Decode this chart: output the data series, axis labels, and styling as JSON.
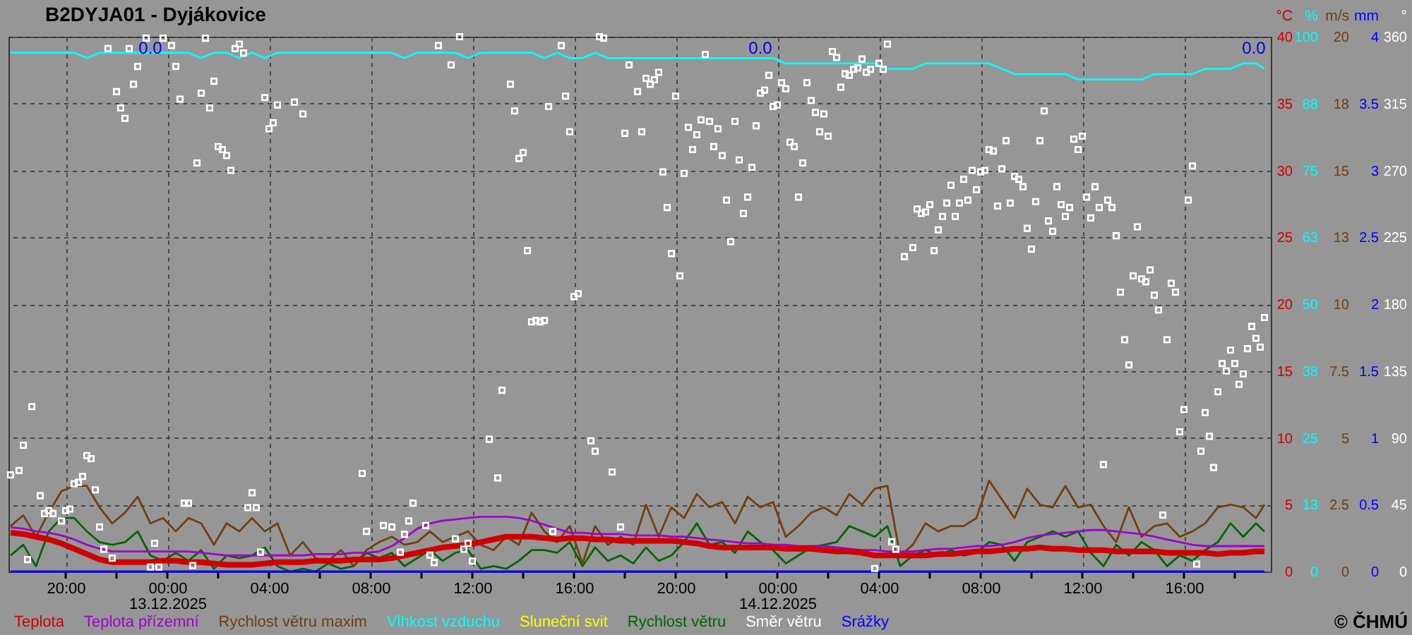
{
  "chart_data": [
    {
      "type": "line",
      "title": "B2DYJA01 - Dyjákovice",
      "x": [
        "2025-12-12T17:50",
        "2025-12-12T18:20",
        "2025-12-12T18:50",
        "2025-12-12T19:20",
        "2025-12-12T19:50",
        "2025-12-12T20:20",
        "2025-12-12T20:50",
        "2025-12-12T21:20",
        "2025-12-12T21:50",
        "2025-12-12T22:20",
        "2025-12-12T22:50",
        "2025-12-12T23:20",
        "2025-12-12T23:50",
        "2025-12-13T00:20",
        "2025-12-13T00:50",
        "2025-12-13T01:20",
        "2025-12-13T01:50",
        "2025-12-13T02:20",
        "2025-12-13T02:50",
        "2025-12-13T03:20",
        "2025-12-13T03:50",
        "2025-12-13T04:20",
        "2025-12-13T04:50",
        "2025-12-13T05:20",
        "2025-12-13T05:50",
        "2025-12-13T06:20",
        "2025-12-13T06:50",
        "2025-12-13T07:20",
        "2025-12-13T07:50",
        "2025-12-13T08:20",
        "2025-12-13T08:50",
        "2025-12-13T09:20",
        "2025-12-13T09:50",
        "2025-12-13T10:20",
        "2025-12-13T10:50",
        "2025-12-13T11:20",
        "2025-12-13T11:50",
        "2025-12-13T12:20",
        "2025-12-13T12:50",
        "2025-12-13T13:20",
        "2025-12-13T13:50",
        "2025-12-13T14:20",
        "2025-12-13T14:50",
        "2025-12-13T15:20",
        "2025-12-13T15:50",
        "2025-12-13T16:20",
        "2025-12-13T16:50",
        "2025-12-13T17:20",
        "2025-12-13T17:50",
        "2025-12-13T18:20",
        "2025-12-13T18:50",
        "2025-12-13T19:20",
        "2025-12-13T19:50",
        "2025-12-13T20:20",
        "2025-12-13T20:50",
        "2025-12-13T21:20",
        "2025-12-13T21:50",
        "2025-12-13T22:20",
        "2025-12-13T22:50",
        "2025-12-13T23:20",
        "2025-12-13T23:50",
        "2025-12-14T00:20",
        "2025-12-14T00:50",
        "2025-12-14T01:20",
        "2025-12-14T01:50",
        "2025-12-14T02:20",
        "2025-12-14T02:50",
        "2025-12-14T03:20",
        "2025-12-14T03:50",
        "2025-12-14T04:20",
        "2025-12-14T04:50",
        "2025-12-14T05:20",
        "2025-12-14T05:50",
        "2025-12-14T06:20",
        "2025-12-14T06:50",
        "2025-12-14T07:20",
        "2025-12-14T07:50",
        "2025-12-14T08:20",
        "2025-12-14T08:50",
        "2025-12-14T09:20",
        "2025-12-14T09:50",
        "2025-12-14T10:20",
        "2025-12-14T10:50",
        "2025-12-14T11:20",
        "2025-12-14T11:50",
        "2025-12-14T12:20",
        "2025-12-14T12:50",
        "2025-12-14T13:20",
        "2025-12-14T13:50",
        "2025-12-14T14:20",
        "2025-12-14T14:50",
        "2025-12-14T15:20",
        "2025-12-14T15:50",
        "2025-12-14T16:20",
        "2025-12-14T16:50",
        "2025-12-14T17:20",
        "2025-12-14T17:50",
        "2025-12-14T18:20",
        "2025-12-14T18:50",
        "2025-12-14T19:10"
      ],
      "series": [
        {
          "name": "Teplota",
          "color": "#d00000",
          "values": [
            2.9,
            2.8,
            2.6,
            2.4,
            2.1,
            1.7,
            1.3,
            0.9,
            0.7,
            0.7,
            0.7,
            0.7,
            0.8,
            0.8,
            0.7,
            0.7,
            0.6,
            0.5,
            0.5,
            0.5,
            0.6,
            0.7,
            0.7,
            0.7,
            0.8,
            0.8,
            0.8,
            0.9,
            0.9,
            0.9,
            1.0,
            1.2,
            1.4,
            1.6,
            1.8,
            1.9,
            2.0,
            2.2,
            2.4,
            2.6,
            2.6,
            2.6,
            2.5,
            2.4,
            2.5,
            2.5,
            2.4,
            2.4,
            2.3,
            2.3,
            2.3,
            2.3,
            2.3,
            2.2,
            2.1,
            1.9,
            1.8,
            1.8,
            1.8,
            1.8,
            1.8,
            1.7,
            1.7,
            1.7,
            1.6,
            1.5,
            1.5,
            1.4,
            1.2,
            1.2,
            1.2,
            1.2,
            1.2,
            1.3,
            1.3,
            1.4,
            1.5,
            1.5,
            1.6,
            1.7,
            1.7,
            1.8,
            1.7,
            1.7,
            1.6,
            1.6,
            1.6,
            1.5,
            1.5,
            1.5,
            1.5,
            1.4,
            1.4,
            1.4,
            1.4,
            1.3,
            1.4,
            1.4,
            1.5,
            1.5
          ]
        },
        {
          "name": "Teplota přízemní",
          "color": "#a000d0",
          "values": [
            3.3,
            3.2,
            3.0,
            2.9,
            2.7,
            2.4,
            2.0,
            1.7,
            1.5,
            1.5,
            1.5,
            1.5,
            1.5,
            1.5,
            1.5,
            1.4,
            1.3,
            1.2,
            1.2,
            1.2,
            1.2,
            1.2,
            1.2,
            1.2,
            1.3,
            1.3,
            1.3,
            1.4,
            1.4,
            1.5,
            1.9,
            2.5,
            3.2,
            3.6,
            3.8,
            3.9,
            4.0,
            4.1,
            4.1,
            4.1,
            4.0,
            3.8,
            3.5,
            3.2,
            2.9,
            2.9,
            2.8,
            2.8,
            2.8,
            2.7,
            2.7,
            2.7,
            2.6,
            2.6,
            2.5,
            2.4,
            2.3,
            2.2,
            2.1,
            2.1,
            2.0,
            2.0,
            1.9,
            1.9,
            1.9,
            1.8,
            1.7,
            1.6,
            1.6,
            1.5,
            1.5,
            1.5,
            1.6,
            1.7,
            1.7,
            1.8,
            1.9,
            1.9,
            2.0,
            2.2,
            2.5,
            2.7,
            2.8,
            2.9,
            3.0,
            3.1,
            3.1,
            3.0,
            2.9,
            2.8,
            2.6,
            2.4,
            2.2,
            2.0,
            1.9,
            1.9,
            1.9,
            1.9,
            1.9,
            1.9
          ]
        },
        {
          "name": "Rychlost větru maxim",
          "color": "#704010",
          "axis": "y3",
          "values": [
            1.7,
            2.1,
            1.3,
            2.2,
            3.0,
            3.2,
            3.2,
            2.4,
            1.8,
            2.2,
            2.8,
            1.8,
            2.0,
            1.5,
            2.0,
            1.8,
            1.0,
            1.8,
            1.5,
            2.0,
            1.5,
            1.8,
            0.6,
            1.1,
            0.5,
            0.4,
            0.8,
            0.2,
            0.8,
            1.1,
            1.3,
            1.0,
            1.1,
            1.5,
            1.1,
            1.3,
            1.5,
            1.0,
            0.8,
            1.3,
            1.0,
            2.2,
            1.5,
            1.1,
            1.7,
            0.3,
            1.7,
            1.0,
            1.3,
            1.0,
            2.5,
            1.3,
            2.4,
            2.0,
            2.9,
            2.4,
            2.6,
            1.8,
            2.8,
            2.4,
            2.6,
            1.3,
            1.7,
            2.2,
            2.4,
            2.1,
            2.9,
            2.5,
            3.1,
            3.2,
            0.6,
            1.0,
            1.8,
            1.5,
            1.7,
            1.7,
            2.0,
            3.4,
            2.7,
            2.0,
            3.1,
            2.5,
            2.4,
            3.2,
            2.4,
            2.5,
            1.7,
            1.1,
            2.4,
            1.3,
            1.7,
            1.8,
            1.3,
            1.5,
            1.8,
            2.4,
            2.5,
            2.4,
            2.0,
            2.5
          ]
        },
        {
          "name": "Vlhkost vzduchu",
          "color": "#00ffff",
          "axis": "y2",
          "values": [
            97,
            97,
            97,
            97,
            97,
            97,
            96,
            97,
            97,
            97,
            97,
            97,
            97,
            97,
            97,
            96,
            97,
            97,
            96,
            97,
            96,
            97,
            97,
            97,
            97,
            97,
            97,
            97,
            97,
            97,
            97,
            96,
            97,
            97,
            97,
            97,
            96,
            97,
            97,
            97,
            97,
            97,
            96,
            97,
            96,
            96,
            97,
            96,
            96,
            96,
            96,
            96,
            96,
            96,
            96,
            96,
            96,
            96,
            96,
            96,
            96,
            95,
            95,
            95,
            95,
            95,
            95,
            95,
            95,
            94,
            94,
            94,
            95,
            95,
            95,
            95,
            95,
            95,
            94,
            93,
            93,
            93,
            93,
            93,
            92,
            92,
            92,
            92,
            92,
            92,
            93,
            93,
            93,
            93,
            94,
            94,
            94,
            95,
            95,
            94
          ]
        },
        {
          "name": "Sluneční svit",
          "color": "#ffff00",
          "values": [
            null,
            null,
            null,
            null,
            null,
            null,
            null,
            null,
            null,
            null,
            null,
            null,
            null,
            null,
            null,
            null,
            null,
            null,
            null,
            null,
            null,
            null,
            null,
            null,
            null,
            null,
            null,
            null,
            null,
            null,
            null,
            null,
            null,
            null,
            null,
            null,
            null,
            null,
            null,
            null,
            null,
            null,
            null,
            null,
            null,
            null,
            null,
            null,
            null,
            null,
            null,
            null,
            null,
            null,
            null,
            null,
            null,
            null,
            null,
            null,
            null,
            null,
            null,
            null,
            null,
            null,
            null,
            null,
            null,
            null,
            null,
            null,
            null,
            null,
            null,
            null,
            null,
            null,
            null,
            null,
            null,
            null,
            null,
            null,
            null,
            null,
            null,
            null,
            null,
            null,
            null,
            null,
            null,
            null,
            null,
            null,
            null,
            null,
            null,
            null
          ]
        },
        {
          "name": "Rychlost větru",
          "color": "#006600",
          "axis": "y3",
          "values": [
            0.6,
            1.0,
            0.2,
            1.5,
            2.0,
            2.0,
            1.5,
            1.1,
            1.0,
            1.1,
            1.5,
            0.6,
            0.4,
            0.7,
            0.4,
            0.8,
            0.1,
            0.6,
            0.5,
            0.6,
            0.9,
            0.2,
            0.0,
            0.1,
            0.0,
            0.3,
            0.1,
            0.2,
            0.7,
            0.5,
            0.7,
            0.2,
            0.5,
            0.8,
            0.4,
            0.7,
            0.8,
            0.1,
            0.2,
            0.1,
            0.4,
            0.8,
            0.8,
            0.7,
            1.1,
            0.2,
            0.9,
            0.4,
            0.6,
            0.3,
            0.9,
            0.4,
            0.6,
            1.1,
            1.8,
            1.0,
            1.1,
            0.7,
            1.5,
            1.1,
            0.8,
            0.3,
            0.6,
            0.9,
            1.0,
            1.1,
            1.7,
            1.5,
            1.3,
            1.7,
            0.2,
            0.6,
            0.8,
            0.6,
            0.8,
            0.6,
            0.7,
            1.1,
            1.0,
            0.4,
            1.1,
            1.3,
            1.5,
            1.3,
            1.5,
            0.7,
            0.2,
            1.0,
            0.6,
            1.1,
            0.8,
            0.2,
            0.6,
            0.4,
            0.8,
            1.1,
            1.8,
            1.3,
            1.8,
            1.5
          ]
        }
      ],
      "xlim": [
        "2025-12-12T17:45",
        "2025-12-14T19:25"
      ],
      "xticks": [
        {
          "value": "2025-12-12T20:00",
          "label": "20:00"
        },
        {
          "value": "2025-12-12T22:00",
          "label": null
        },
        {
          "value": "2025-12-13T00:00",
          "label": "00:00\n13.12.2025"
        },
        {
          "value": "2025-12-13T02:00",
          "label": null
        },
        {
          "value": "2025-12-13T04:00",
          "label": "04:00"
        },
        {
          "value": "2025-12-13T06:00",
          "label": null
        },
        {
          "value": "2025-12-13T08:00",
          "label": "08:00"
        },
        {
          "value": "2025-12-13T10:00",
          "label": null
        },
        {
          "value": "2025-12-13T12:00",
          "label": "12:00"
        },
        {
          "value": "2025-12-13T14:00",
          "label": null
        },
        {
          "value": "2025-12-13T16:00",
          "label": "16:00"
        },
        {
          "value": "2025-12-13T18:00",
          "label": null
        },
        {
          "value": "2025-12-13T20:00",
          "label": "20:00"
        },
        {
          "value": "2025-12-13T22:00",
          "label": null
        },
        {
          "value": "2025-12-14T00:00",
          "label": "00:00\n14.12.2025"
        },
        {
          "value": "2025-12-14T02:00",
          "label": null
        },
        {
          "value": "2025-12-14T04:00",
          "label": "04:00"
        },
        {
          "value": "2025-12-14T06:00",
          "label": null
        },
        {
          "value": "2025-12-14T08:00",
          "label": "08:00"
        },
        {
          "value": "2025-12-14T10:00",
          "label": null
        },
        {
          "value": "2025-12-14T12:00",
          "label": "12:00"
        },
        {
          "value": "2025-12-14T14:00",
          "label": null
        },
        {
          "value": "2025-12-14T16:00",
          "label": "16:00"
        },
        {
          "value": "2025-12-14T18:00",
          "label": null
        }
      ],
      "ylabel": "°C",
      "ylim": [
        0,
        40
      ],
      "yticks": [
        0,
        5,
        10,
        15,
        20,
        25,
        30,
        35,
        40
      ],
      "y2label": "%",
      "y2lim": [
        0,
        100
      ],
      "y2ticks": [
        0,
        {
          "value": 12.5,
          "label": "13"
        },
        25,
        {
          "value": 37.5,
          "label": "38"
        },
        50,
        {
          "value": 62.5,
          "label": "63"
        },
        75,
        {
          "value": 87.5,
          "label": "88"
        },
        100
      ],
      "y3label": "m/s",
      "y3lim": [
        0,
        20
      ],
      "y3ticks": [
        0,
        2.5,
        5,
        7.5,
        10,
        {
          "value": 12.5,
          "label": "13"
        },
        15,
        {
          "value": 17.5,
          "label": "18"
        },
        20
      ],
      "annotations": [
        "© ČHMÚ"
      ],
      "grid": true,
      "legend": "bottom"
    },
    {
      "type": "scatter",
      "tick_labels": "y",
      "x": [
        "2025-12-12T17:50",
        "2025-12-12T18:20",
        "2025-12-12T18:50",
        "2025-12-12T19:20",
        "2025-12-12T19:50",
        "2025-12-12T20:20",
        "2025-12-12T20:50",
        "2025-12-12T21:20",
        "2025-12-12T21:50",
        "2025-12-12T22:20",
        "2025-12-12T22:50",
        "2025-12-12T23:20",
        "2025-12-12T23:50",
        "2025-12-13T00:20",
        "2025-12-13T00:50",
        "2025-12-13T01:20",
        "2025-12-13T01:50",
        "2025-12-13T02:20",
        "2025-12-13T02:50",
        "2025-12-13T03:20",
        "2025-12-13T03:50",
        "2025-12-13T04:20",
        "2025-12-13T04:50",
        "2025-12-13T05:20",
        "2025-12-13T05:50",
        "2025-12-13T06:20",
        "2025-12-13T06:50",
        "2025-12-13T07:20",
        "2025-12-13T07:50",
        "2025-12-13T08:20",
        "2025-12-13T08:50",
        "2025-12-13T09:20",
        "2025-12-13T09:50",
        "2025-12-13T10:20",
        "2025-12-13T10:50",
        "2025-12-13T11:20",
        "2025-12-13T11:50",
        "2025-12-13T12:20",
        "2025-12-13T12:50",
        "2025-12-13T13:20",
        "2025-12-13T13:50",
        "2025-12-13T14:20",
        "2025-12-13T14:50",
        "2025-12-13T15:20",
        "2025-12-13T15:50",
        "2025-12-13T16:20",
        "2025-12-13T16:50",
        "2025-12-13T17:20",
        "2025-12-13T17:50",
        "2025-12-13T18:20",
        "2025-12-13T18:50",
        "2025-12-13T19:20",
        "2025-12-13T19:50",
        "2025-12-13T20:20",
        "2025-12-13T20:50",
        "2025-12-13T21:20",
        "2025-12-13T21:50",
        "2025-12-13T22:20",
        "2025-12-13T22:50",
        "2025-12-13T23:20",
        "2025-12-13T23:50",
        "2025-12-14T00:20",
        "2025-12-14T00:50",
        "2025-12-14T01:20",
        "2025-12-14T01:50",
        "2025-12-14T02:20",
        "2025-12-14T02:50",
        "2025-12-14T03:20",
        "2025-12-14T03:50",
        "2025-12-14T04:20",
        "2025-12-14T04:50",
        "2025-12-14T05:20",
        "2025-12-14T05:50",
        "2025-12-14T06:20",
        "2025-12-14T06:50",
        "2025-12-14T07:20",
        "2025-12-14T07:50",
        "2025-12-14T08:20",
        "2025-12-14T08:50",
        "2025-12-14T09:20",
        "2025-12-14T09:50",
        "2025-12-14T10:20",
        "2025-12-14T10:50",
        "2025-12-14T11:20",
        "2025-12-14T11:50",
        "2025-12-14T12:20",
        "2025-12-14T12:50",
        "2025-12-14T13:20",
        "2025-12-14T13:50",
        "2025-12-14T14:20",
        "2025-12-14T14:50",
        "2025-12-14T15:20",
        "2025-12-14T15:50",
        "2025-12-14T16:20",
        "2025-12-14T16:50",
        "2025-12-14T17:20",
        "2025-12-14T17:50",
        "2025-12-14T18:20",
        "2025-12-14T18:50",
        "2025-12-14T19:10"
      ],
      "series": [
        {
          "name": "Směr větru",
          "color": "#ffffff",
          "marker": "square",
          "x": [
            "2025-12-12T17:50",
            "2025-12-12T18:10",
            "2025-12-12T18:20",
            "2025-12-12T18:30",
            "2025-12-12T18:40",
            "2025-12-12T19:00",
            "2025-12-12T19:10",
            "2025-12-12T19:20",
            "2025-12-12T19:30",
            "2025-12-12T19:50",
            "2025-12-12T20:00",
            "2025-12-12T20:10",
            "2025-12-12T20:20",
            "2025-12-12T20:30",
            "2025-12-12T20:40",
            "2025-12-12T20:50",
            "2025-12-12T21:00",
            "2025-12-12T21:10",
            "2025-12-12T21:20",
            "2025-12-12T21:30",
            "2025-12-12T21:40",
            "2025-12-12T21:50",
            "2025-12-12T22:00",
            "2025-12-12T22:10",
            "2025-12-12T22:20",
            "2025-12-12T22:30",
            "2025-12-12T22:40",
            "2025-12-12T22:50",
            "2025-12-12T23:10",
            "2025-12-12T23:20",
            "2025-12-12T23:30",
            "2025-12-12T23:40",
            "2025-12-12T23:50",
            "2025-12-13T00:10",
            "2025-12-13T00:20",
            "2025-12-13T00:30",
            "2025-12-13T00:40",
            "2025-12-13T00:50",
            "2025-12-13T01:00",
            "2025-12-13T01:10",
            "2025-12-13T01:20",
            "2025-12-13T01:30",
            "2025-12-13T01:40",
            "2025-12-13T01:50",
            "2025-12-13T02:00",
            "2025-12-13T02:10",
            "2025-12-13T02:20",
            "2025-12-13T02:30",
            "2025-12-13T02:40",
            "2025-12-13T02:50",
            "2025-12-13T03:00",
            "2025-12-13T03:10",
            "2025-12-13T03:20",
            "2025-12-13T03:30",
            "2025-12-13T03:40",
            "2025-12-13T03:50",
            "2025-12-13T04:00",
            "2025-12-13T04:10",
            "2025-12-13T04:20",
            "2025-12-13T05:00",
            "2025-12-13T05:20",
            "2025-12-13T07:40",
            "2025-12-13T07:50",
            "2025-12-13T08:30",
            "2025-12-13T08:50",
            "2025-12-13T09:10",
            "2025-12-13T09:20",
            "2025-12-13T09:30",
            "2025-12-13T09:40",
            "2025-12-13T10:10",
            "2025-12-13T10:20",
            "2025-12-13T10:30",
            "2025-12-13T10:40",
            "2025-12-13T11:10",
            "2025-12-13T11:20",
            "2025-12-13T11:30",
            "2025-12-13T11:40",
            "2025-12-13T11:50",
            "2025-12-13T12:00",
            "2025-12-13T12:40",
            "2025-12-13T13:00",
            "2025-12-13T13:10",
            "2025-12-13T13:30",
            "2025-12-13T13:40",
            "2025-12-13T13:50",
            "2025-12-13T14:00",
            "2025-12-13T14:10",
            "2025-12-13T14:20",
            "2025-12-13T14:30",
            "2025-12-13T14:40",
            "2025-12-13T14:50",
            "2025-12-13T15:00",
            "2025-12-13T15:10",
            "2025-12-13T15:30",
            "2025-12-13T15:40",
            "2025-12-13T15:50",
            "2025-12-13T16:00",
            "2025-12-13T16:10",
            "2025-12-13T16:40",
            "2025-12-13T16:50",
            "2025-12-13T17:00",
            "2025-12-13T17:10",
            "2025-12-13T17:30",
            "2025-12-13T17:50",
            "2025-12-13T18:00",
            "2025-12-13T18:10",
            "2025-12-13T18:30",
            "2025-12-13T18:40",
            "2025-12-13T18:50",
            "2025-12-13T19:00",
            "2025-12-13T19:10",
            "2025-12-13T19:20",
            "2025-12-13T19:30",
            "2025-12-13T19:40",
            "2025-12-13T19:50",
            "2025-12-13T20:00",
            "2025-12-13T20:10",
            "2025-12-13T20:20",
            "2025-12-13T20:30",
            "2025-12-13T20:40",
            "2025-12-13T20:50",
            "2025-12-13T21:00",
            "2025-12-13T21:10",
            "2025-12-13T21:20",
            "2025-12-13T21:30",
            "2025-12-13T21:40",
            "2025-12-13T21:50",
            "2025-12-13T22:00",
            "2025-12-13T22:10",
            "2025-12-13T22:20",
            "2025-12-13T22:30",
            "2025-12-13T22:40",
            "2025-12-13T22:50",
            "2025-12-13T23:00",
            "2025-12-13T23:10",
            "2025-12-13T23:20",
            "2025-12-13T23:30",
            "2025-12-13T23:40",
            "2025-12-13T23:50",
            "2025-12-14T00:00",
            "2025-12-14T00:10",
            "2025-12-14T00:20",
            "2025-12-14T00:30",
            "2025-12-14T00:40",
            "2025-12-14T00:50",
            "2025-12-14T01:00",
            "2025-12-14T01:10",
            "2025-12-14T01:20",
            "2025-12-14T01:30",
            "2025-12-14T01:40",
            "2025-12-14T01:50",
            "2025-12-14T02:00",
            "2025-12-14T02:10",
            "2025-12-14T02:20",
            "2025-12-14T02:30",
            "2025-12-14T02:40",
            "2025-12-14T02:50",
            "2025-12-14T03:00",
            "2025-12-14T03:10",
            "2025-12-14T03:20",
            "2025-12-14T03:30",
            "2025-12-14T03:40",
            "2025-12-14T03:50",
            "2025-12-14T04:00",
            "2025-12-14T04:10",
            "2025-12-14T04:20",
            "2025-12-14T04:30",
            "2025-12-14T04:40",
            "2025-12-14T05:00",
            "2025-12-14T05:20",
            "2025-12-14T05:30",
            "2025-12-14T05:40",
            "2025-12-14T05:50",
            "2025-12-14T06:00",
            "2025-12-14T06:10",
            "2025-12-14T06:20",
            "2025-12-14T06:30",
            "2025-12-14T06:40",
            "2025-12-14T06:50",
            "2025-12-14T07:00",
            "2025-12-14T07:10",
            "2025-12-14T07:20",
            "2025-12-14T07:30",
            "2025-12-14T07:40",
            "2025-12-14T07:50",
            "2025-12-14T08:00",
            "2025-12-14T08:10",
            "2025-12-14T08:20",
            "2025-12-14T08:30",
            "2025-12-14T08:40",
            "2025-12-14T08:50",
            "2025-12-14T09:00",
            "2025-12-14T09:10",
            "2025-12-14T09:20",
            "2025-12-14T09:30",
            "2025-12-14T09:40",
            "2025-12-14T09:50",
            "2025-12-14T10:00",
            "2025-12-14T10:10",
            "2025-12-14T10:20",
            "2025-12-14T10:30",
            "2025-12-14T10:40",
            "2025-12-14T10:50",
            "2025-12-14T11:00",
            "2025-12-14T11:10",
            "2025-12-14T11:20",
            "2025-12-14T11:30",
            "2025-12-14T11:40",
            "2025-12-14T11:50",
            "2025-12-14T12:00",
            "2025-12-14T12:10",
            "2025-12-14T12:20",
            "2025-12-14T12:30",
            "2025-12-14T12:40",
            "2025-12-14T12:50",
            "2025-12-14T13:00",
            "2025-12-14T13:10",
            "2025-12-14T13:20",
            "2025-12-14T13:30",
            "2025-12-14T13:40",
            "2025-12-14T13:50",
            "2025-12-14T14:00",
            "2025-12-14T14:10",
            "2025-12-14T14:20",
            "2025-12-14T14:30",
            "2025-12-14T14:40",
            "2025-12-14T14:50",
            "2025-12-14T15:00",
            "2025-12-14T15:10",
            "2025-12-14T15:20",
            "2025-12-14T15:30",
            "2025-12-14T15:40",
            "2025-12-14T15:50",
            "2025-12-14T16:00",
            "2025-12-14T16:10",
            "2025-12-14T16:20",
            "2025-12-14T16:30",
            "2025-12-14T16:40",
            "2025-12-14T16:50",
            "2025-12-14T17:00",
            "2025-12-14T17:10",
            "2025-12-14T17:20",
            "2025-12-14T17:30",
            "2025-12-14T17:40",
            "2025-12-14T17:50",
            "2025-12-14T18:00",
            "2025-12-14T18:10",
            "2025-12-14T18:20",
            "2025-12-14T18:30",
            "2025-12-14T18:40",
            "2025-12-14T18:50",
            "2025-12-14T19:00",
            "2025-12-14T19:10"
          ],
          "values": [
            65,
            68,
            85,
            8,
            111,
            51,
            39,
            41,
            39,
            34,
            41,
            42,
            59,
            60,
            64,
            78,
            76,
            55,
            30,
            15,
            352,
            9,
            323,
            312,
            305,
            352,
            328,
            340,
            359,
            3,
            19,
            3,
            359,
            354,
            340,
            318,
            46,
            46,
            4,
            275,
            322,
            359,
            312,
            330,
            286,
            284,
            280,
            270,
            352,
            355,
            349,
            43,
            53,
            43,
            13,
            319,
            298,
            302,
            314,
            316,
            308,
            66,
            27,
            31,
            30,
            13,
            25,
            34,
            46,
            31,
            11,
            6,
            354,
            341,
            22,
            360,
            15,
            19,
            7,
            89,
            63,
            122,
            328,
            310,
            278,
            282,
            216,
            168,
            169,
            168,
            169,
            313,
            27,
            354,
            320,
            296,
            185,
            187,
            88,
            81,
            360,
            359,
            67,
            30,
            295,
            341,
            323,
            296,
            332,
            328,
            331,
            336,
            269,
            245,
            214,
            320,
            199,
            268,
            299,
            284,
            294,
            304,
            348,
            303,
            286,
            298,
            280,
            250,
            222,
            303,
            277,
            241,
            252,
            272,
            300,
            322,
            324,
            334,
            313,
            314,
            329,
            325,
            289,
            286,
            252,
            275,
            329,
            317,
            309,
            296,
            308,
            293,
            350,
            346,
            326,
            335,
            334,
            338,
            339,
            345,
            336,
            338,
            2,
            342,
            338,
            355,
            20,
            15,
            212,
            218,
            244,
            241,
            242,
            247,
            216,
            230,
            239,
            248,
            260,
            239,
            248,
            264,
            250,
            270,
            257,
            269,
            270,
            284,
            283,
            246,
            271,
            290,
            248,
            266,
            264,
            259,
            231,
            217,
            249,
            290,
            310,
            236,
            229,
            259,
            247,
            239,
            245,
            291,
            284,
            293,
            252,
            238,
            259,
            245,
            72,
            250,
            245,
            226,
            188,
            156,
            139,
            199,
            232,
            197,
            195,
            203,
            186,
            176,
            38,
            156,
            194,
            188,
            94,
            109,
            250,
            273,
            5,
            81,
            107,
            91,
            70,
            121,
            140,
            135,
            149,
            140,
            126,
            133,
            150,
            165,
            157,
            151,
            171
          ]
        },
        {
          "name": "Srážky",
          "color": "#0000ff",
          "type": "line",
          "axis": "y2",
          "values": [
            0,
            0,
            0,
            0,
            0,
            0,
            0,
            0,
            0,
            0,
            0,
            0,
            0,
            0,
            0,
            0,
            0,
            0,
            0,
            0,
            0,
            0,
            0,
            0,
            0,
            0,
            0,
            0,
            0,
            0,
            0,
            0,
            0,
            0,
            0,
            0,
            0,
            0,
            0,
            0,
            0,
            0,
            0,
            0,
            0,
            0,
            0,
            0,
            0,
            0,
            0,
            0,
            0,
            0,
            0,
            0,
            0,
            0,
            0,
            0,
            0,
            0,
            0,
            0,
            0,
            0,
            0,
            0,
            0,
            0,
            0,
            0,
            0,
            0,
            0,
            0,
            0,
            0,
            0,
            0,
            0,
            0,
            0,
            0,
            0,
            0,
            0,
            0,
            0,
            0,
            0,
            0,
            0,
            0,
            0,
            0,
            0,
            0,
            0,
            0
          ]
        }
      ],
      "xlim": [
        "2025-12-12T17:45",
        "2025-12-14T19:25"
      ],
      "ylabel": "°",
      "ylim": [
        0,
        360
      ],
      "yticks": [
        0,
        45,
        90,
        135,
        180,
        225,
        270,
        315,
        360
      ],
      "y2label": "mm",
      "y2lim": [
        0,
        4
      ],
      "y2ticks": [
        0,
        0.5,
        1,
        1.5,
        2,
        2.5,
        3,
        3.5,
        4
      ],
      "annotations": [
        "0.0",
        "0.0",
        "0.0"
      ],
      "legend": "bottom"
    }
  ]
}
